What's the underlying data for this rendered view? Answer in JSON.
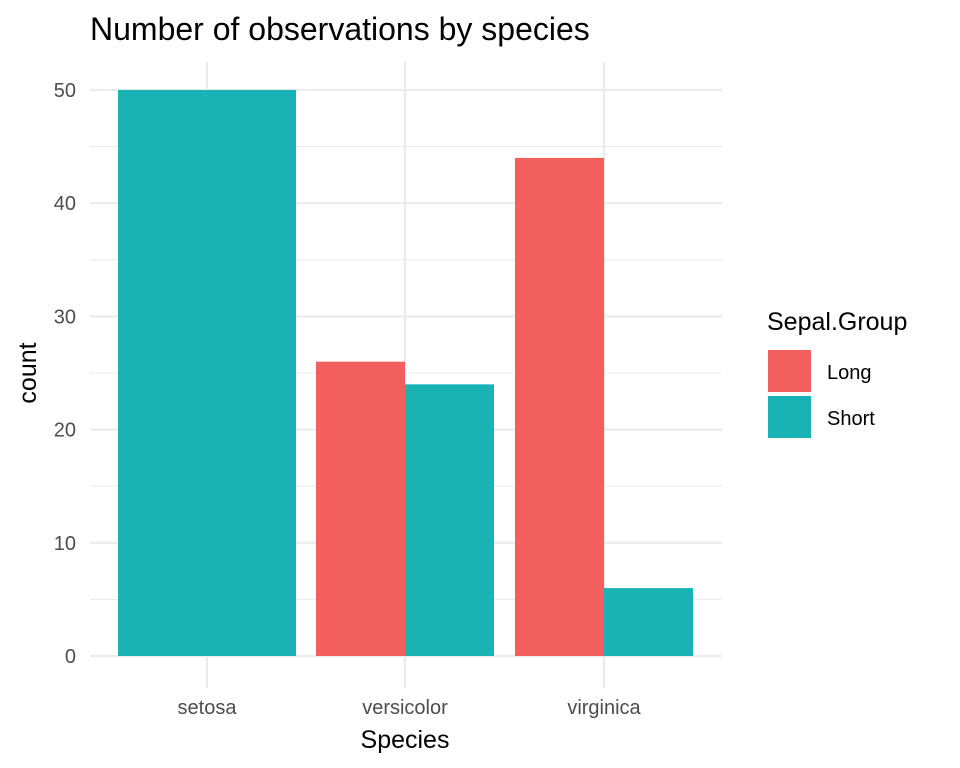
{
  "chart_data": {
    "type": "bar",
    "title": "Number of observations by species",
    "xlabel": "Species",
    "ylabel": "count",
    "categories": [
      "setosa",
      "versicolor",
      "virginica"
    ],
    "series": [
      {
        "name": "Long",
        "values": [
          0,
          26,
          44
        ],
        "color": "#F25F5C"
      },
      {
        "name": "Short",
        "values": [
          50,
          24,
          6
        ],
        "color": "#19B3B6"
      }
    ],
    "ylim": [
      0,
      52.5
    ],
    "yticks": [
      0,
      10,
      20,
      30,
      40,
      50
    ],
    "grid": true,
    "legend": {
      "title": "Sepal.Group",
      "position": "right"
    }
  }
}
